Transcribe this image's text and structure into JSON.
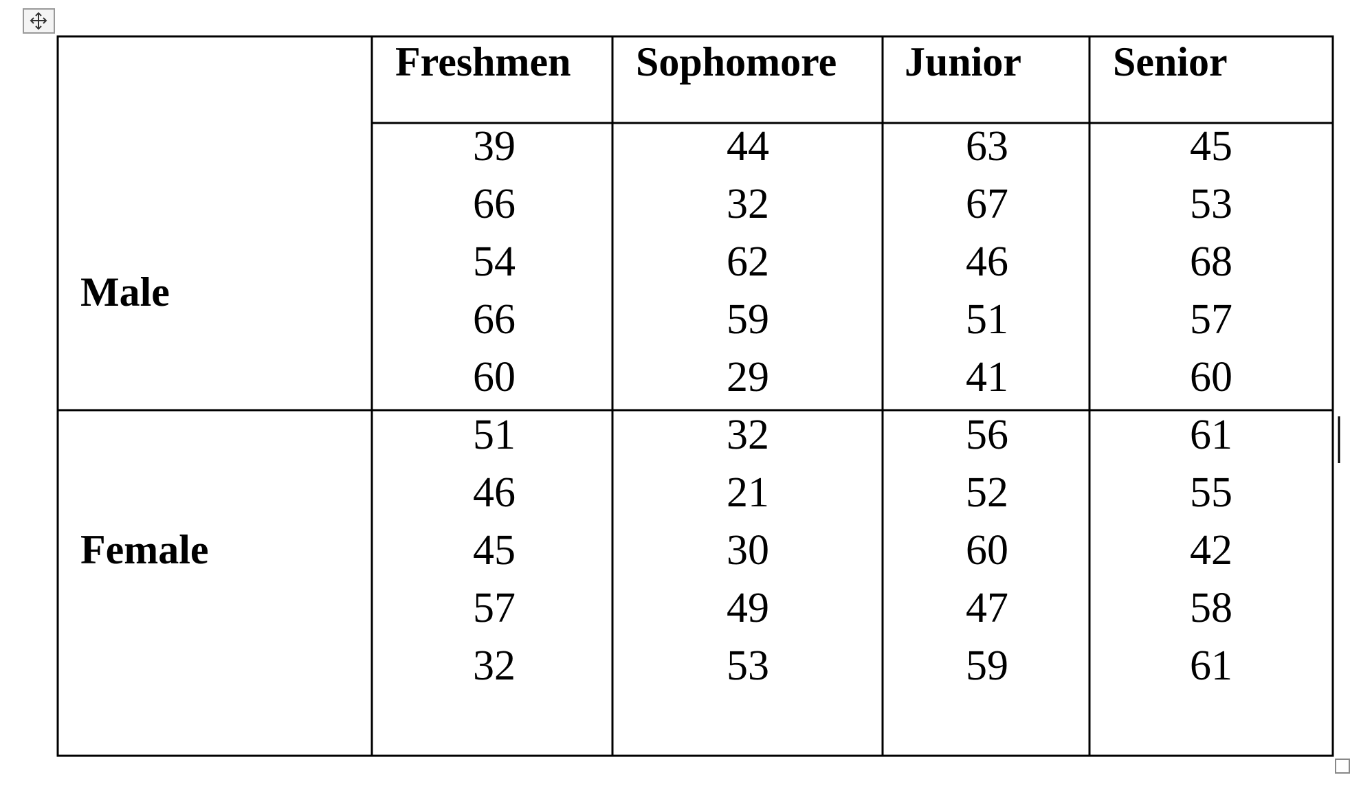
{
  "table": {
    "columns": [
      "Freshmen",
      "Sophomore",
      "Junior",
      "Senior"
    ],
    "groups": [
      {
        "label": "Male",
        "rows": [
          [
            39,
            44,
            63,
            45
          ],
          [
            66,
            32,
            67,
            53
          ],
          [
            54,
            62,
            46,
            68
          ],
          [
            66,
            59,
            51,
            57
          ],
          [
            60,
            29,
            41,
            60
          ]
        ]
      },
      {
        "label": "Female",
        "rows": [
          [
            51,
            32,
            56,
            61
          ],
          [
            46,
            21,
            52,
            55
          ],
          [
            45,
            30,
            60,
            42
          ],
          [
            57,
            49,
            47,
            58
          ],
          [
            32,
            53,
            59,
            61
          ]
        ]
      }
    ]
  }
}
